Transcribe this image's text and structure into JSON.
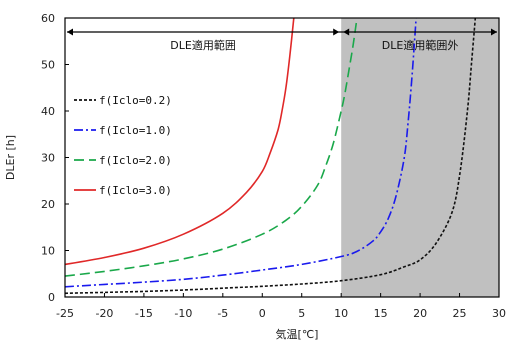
{
  "chart_data": {
    "type": "line",
    "title": "",
    "xlabel": "気温[℃]",
    "ylabel": "DLEr [h]",
    "xlim": [
      -25,
      30
    ],
    "ylim": [
      0,
      60
    ],
    "xticks": [
      -25,
      -20,
      -15,
      -10,
      -5,
      0,
      5,
      10,
      15,
      20,
      25,
      30
    ],
    "yticks": [
      0,
      10,
      20,
      30,
      40,
      50,
      60
    ],
    "grid": false,
    "legend_position": "left",
    "shaded_region": {
      "x_from": 10,
      "x_to": 30,
      "color": "#c0c0c0"
    },
    "annotations": {
      "inside_label": "DLE適用範囲",
      "outside_label": "DLE適用範囲外",
      "boundary_x": 10
    },
    "series": [
      {
        "name": "f(Iclo=0.2)",
        "color": "#111111",
        "dash": "3,2",
        "x": [
          -25,
          -20,
          -15,
          -10,
          -5,
          0,
          5,
          10,
          15,
          18,
          20,
          22,
          24,
          25,
          26,
          26.5,
          27
        ],
        "y": [
          0.8,
          1.0,
          1.2,
          1.5,
          1.9,
          2.3,
          2.8,
          3.5,
          4.8,
          6.5,
          8.0,
          11.5,
          18.0,
          26.0,
          40.0,
          50.0,
          60.0
        ]
      },
      {
        "name": "f(Iclo=1.0)",
        "color": "#1a1aee",
        "dash": "9,3,2,3",
        "x": [
          -25,
          -20,
          -15,
          -10,
          -5,
          0,
          5,
          10,
          12,
          14,
          15,
          16,
          17,
          18,
          18.5,
          19,
          19.5
        ],
        "y": [
          2.2,
          2.7,
          3.2,
          3.8,
          4.7,
          5.8,
          7.0,
          8.7,
          9.8,
          12.0,
          14.0,
          17.0,
          22.0,
          30.0,
          38.0,
          48.0,
          60.0
        ]
      },
      {
        "name": "f(Iclo=2.0)",
        "color": "#1aa84a",
        "dash": "10,5",
        "x": [
          -25,
          -20,
          -15,
          -10,
          -5,
          0,
          3,
          5,
          7,
          8,
          9,
          10,
          10.5,
          11,
          11.5,
          12
        ],
        "y": [
          4.5,
          5.5,
          6.7,
          8.2,
          10.3,
          13.5,
          16.5,
          19.5,
          24.0,
          28.0,
          33.0,
          40.0,
          44.0,
          49.0,
          54.0,
          60.0
        ]
      },
      {
        "name": "f(Iclo=3.0)",
        "color": "#e02828",
        "dash": "",
        "x": [
          -25,
          -20,
          -15,
          -10,
          -5,
          -2,
          0,
          1,
          2,
          2.5,
          3,
          3.5,
          4
        ],
        "y": [
          7.0,
          8.5,
          10.5,
          13.5,
          18.0,
          22.5,
          27.0,
          31.0,
          36.0,
          40.0,
          45.0,
          52.0,
          60.0
        ]
      }
    ]
  }
}
